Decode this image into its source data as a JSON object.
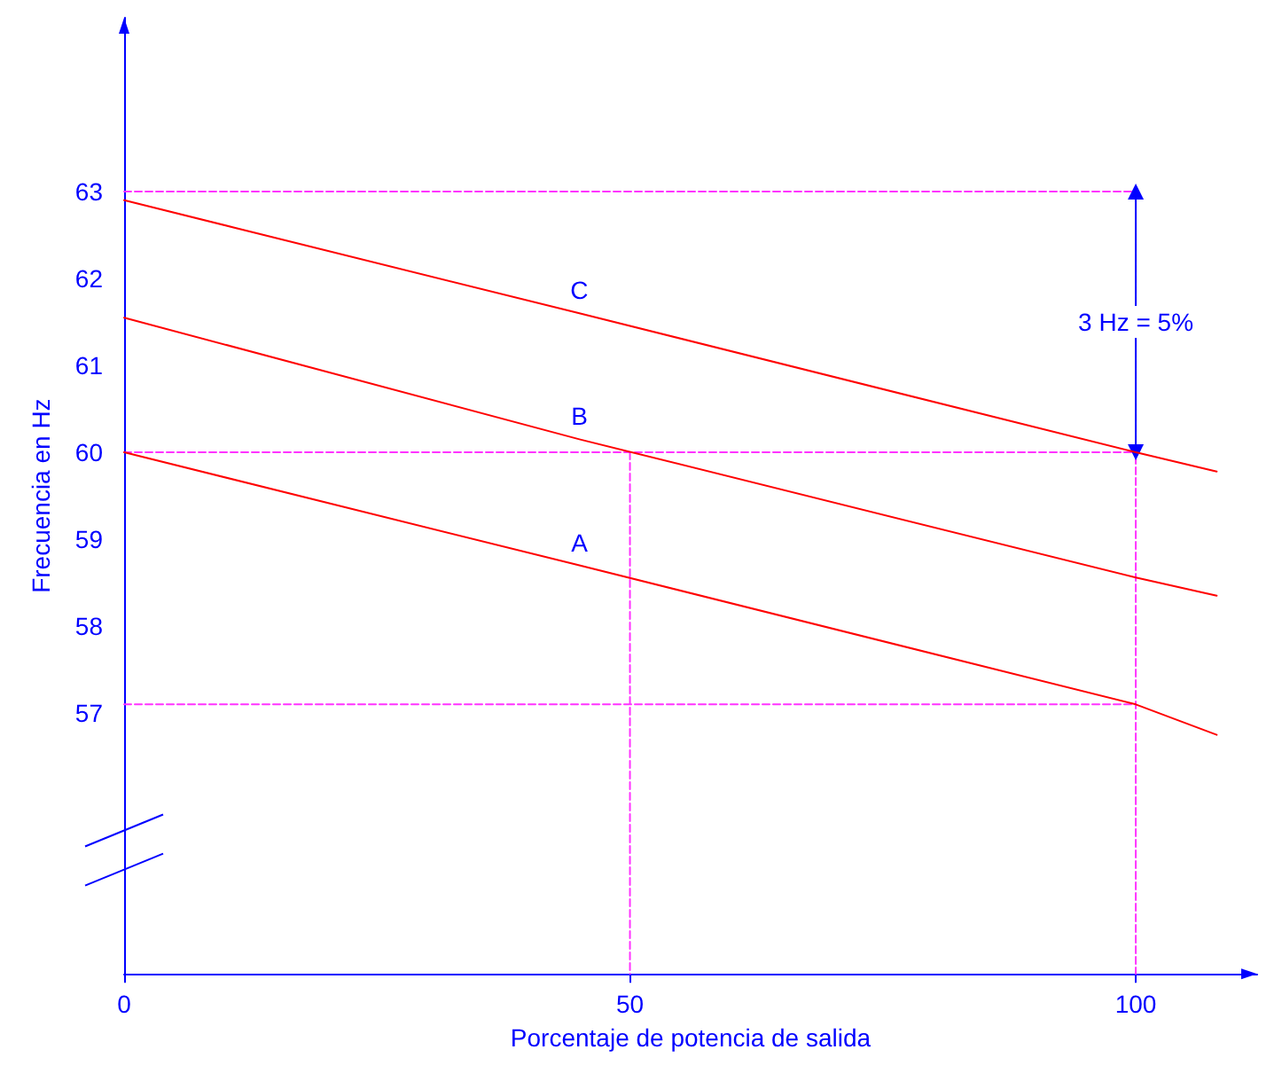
{
  "chart_data": {
    "type": "line",
    "xlabel": "Porcentaje de potencia de salida",
    "ylabel": "Frecuencia en Hz",
    "xlim": [
      0,
      112
    ],
    "xticks": [
      0,
      50,
      100
    ],
    "ylim": [
      54,
      65
    ],
    "yticks": [
      57,
      58,
      59,
      60,
      61,
      62,
      63
    ],
    "grid": false,
    "legend": false,
    "marker": "none",
    "line_style": "solid",
    "series": [
      {
        "name": "A",
        "color": "#ff0000",
        "x": [
          0,
          45,
          100,
          108
        ],
        "values": [
          60,
          58.7,
          57.1,
          56.75
        ]
      },
      {
        "name": "B",
        "color": "#ff0000",
        "x": [
          0,
          45,
          100,
          108
        ],
        "values": [
          61.55,
          60.15,
          58.56,
          58.35
        ]
      },
      {
        "name": "C",
        "color": "#ff0000",
        "x": [
          0,
          45,
          100,
          108
        ],
        "values": [
          62.9,
          61.6,
          60,
          59.78
        ]
      },
      {
        "color": "#ff33ff",
        "line_style": "dashed",
        "x": [
          0,
          100,
          100
        ],
        "values": [
          63,
          63,
          54
        ]
      },
      {
        "color": "#ff33ff",
        "line_style": "dashed",
        "x": [
          0,
          100
        ],
        "values": [
          60,
          60
        ]
      },
      {
        "color": "#ff33ff",
        "line_style": "dashed",
        "x": [
          50,
          50
        ],
        "values": [
          60,
          54
        ]
      },
      {
        "color": "#ff33ff",
        "line_style": "dashed",
        "x": [
          0,
          100
        ],
        "values": [
          57.1,
          57.1
        ]
      },
      {
        "color": "#0000ff",
        "line_style": "solid",
        "marker": "triangle",
        "x": [
          100,
          100
        ],
        "values": [
          60,
          63
        ]
      }
    ],
    "annotations": [
      {
        "text": "3 Hz = 5%",
        "x": 100,
        "y": 61.5
      }
    ]
  }
}
